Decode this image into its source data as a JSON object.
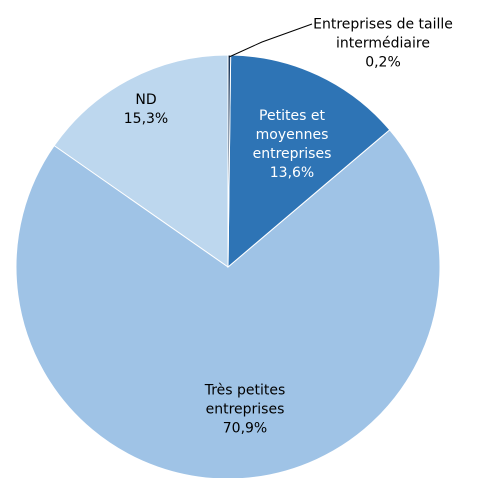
{
  "chart_data": {
    "type": "pie",
    "categories": [
      "Entreprises de taille intermédiaire",
      "Petites et moyennes entreprises",
      "Très petites entreprises",
      "ND"
    ],
    "values": [
      0.2,
      13.6,
      70.9,
      15.3
    ],
    "value_labels": [
      "0,2%",
      "13,6%",
      "70,9%",
      "15,3%"
    ],
    "colors": [
      "#1f3b5e",
      "#2e74b5",
      "#9fc3e6",
      "#bdd7ee"
    ]
  }
}
